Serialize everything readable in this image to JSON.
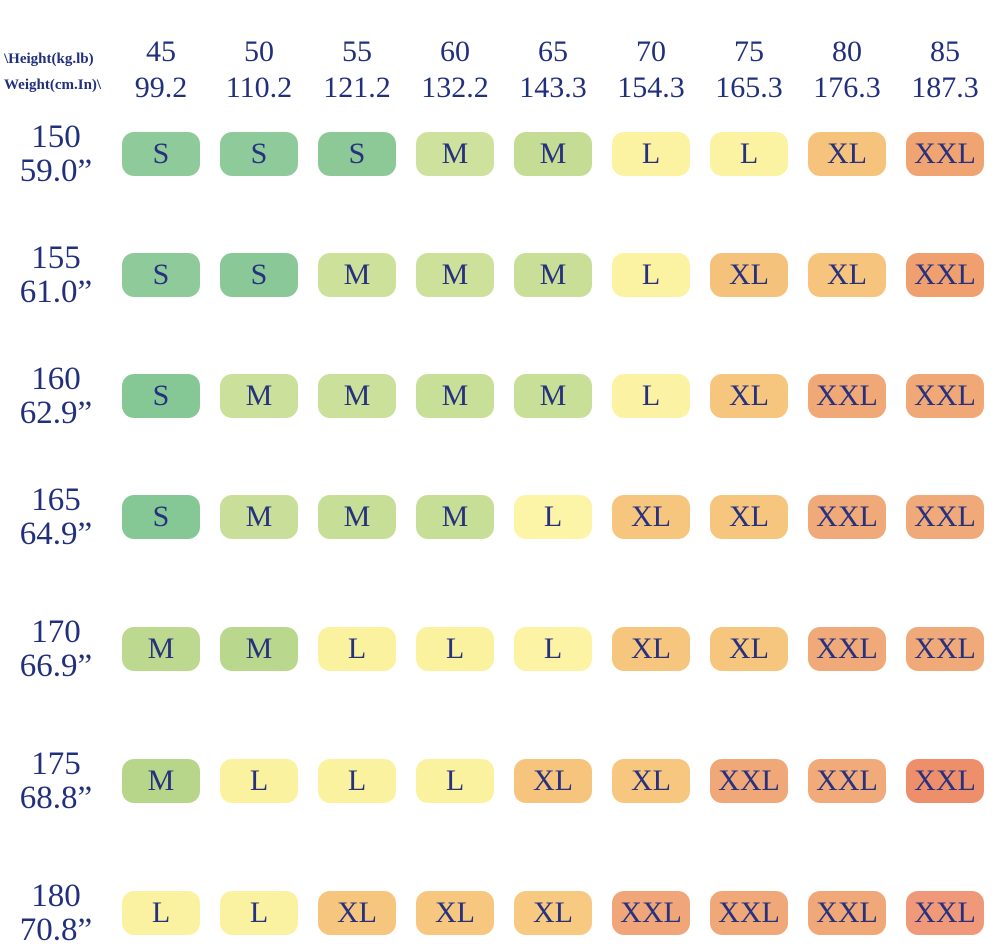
{
  "page": {
    "background": "#ffffff",
    "text_color": "#22307c"
  },
  "corner": {
    "line1": "\\Height(kg.lb)",
    "line2": "Weight(cm.In)\\"
  },
  "columns": [
    {
      "kg": "45",
      "lb": "99.2"
    },
    {
      "kg": "50",
      "lb": "110.2"
    },
    {
      "kg": "55",
      "lb": "121.2"
    },
    {
      "kg": "60",
      "lb": "132.2"
    },
    {
      "kg": "65",
      "lb": "143.3"
    },
    {
      "kg": "70",
      "lb": "154.3"
    },
    {
      "kg": "75",
      "lb": "165.3"
    },
    {
      "kg": "80",
      "lb": "176.3"
    },
    {
      "kg": "85",
      "lb": "187.3"
    }
  ],
  "rows": [
    {
      "cm": "150",
      "in": "59.0”",
      "cells": [
        {
          "size": "S",
          "color": "#8fca9a"
        },
        {
          "size": "S",
          "color": "#8fca9a"
        },
        {
          "size": "S",
          "color": "#8cc997"
        },
        {
          "size": "M",
          "color": "#cfe29d"
        },
        {
          "size": "M",
          "color": "#c4dc93"
        },
        {
          "size": "L",
          "color": "#fbf3a1"
        },
        {
          "size": "L",
          "color": "#fbf3a1"
        },
        {
          "size": "XL",
          "color": "#f6c37c"
        },
        {
          "size": "XXL",
          "color": "#f0a471"
        }
      ]
    },
    {
      "cm": "155",
      "in": "61.0”",
      "cells": [
        {
          "size": "S",
          "color": "#8fca9a"
        },
        {
          "size": "S",
          "color": "#8bc897"
        },
        {
          "size": "M",
          "color": "#cde19b"
        },
        {
          "size": "M",
          "color": "#cde19b"
        },
        {
          "size": "M",
          "color": "#c9df98"
        },
        {
          "size": "L",
          "color": "#fbf3a1"
        },
        {
          "size": "XL",
          "color": "#f5c27b"
        },
        {
          "size": "XL",
          "color": "#f6c47d"
        },
        {
          "size": "XXL",
          "color": "#efa06e"
        }
      ]
    },
    {
      "cm": "160",
      "in": "62.9”",
      "cells": [
        {
          "size": "S",
          "color": "#85c795"
        },
        {
          "size": "M",
          "color": "#cbe09b"
        },
        {
          "size": "M",
          "color": "#cbe09b"
        },
        {
          "size": "M",
          "color": "#c8df98"
        },
        {
          "size": "M",
          "color": "#c8df98"
        },
        {
          "size": "L",
          "color": "#fbf3a3"
        },
        {
          "size": "XL",
          "color": "#f6c57e"
        },
        {
          "size": "XXL",
          "color": "#f0a877"
        },
        {
          "size": "XXL",
          "color": "#f0a877"
        }
      ]
    },
    {
      "cm": "165",
      "in": "64.9”",
      "cells": [
        {
          "size": "S",
          "color": "#86c796"
        },
        {
          "size": "M",
          "color": "#c9df99"
        },
        {
          "size": "M",
          "color": "#c6de96"
        },
        {
          "size": "M",
          "color": "#c6de96"
        },
        {
          "size": "L",
          "color": "#fcf4a6"
        },
        {
          "size": "XL",
          "color": "#f6c57e"
        },
        {
          "size": "XL",
          "color": "#f6c57e"
        },
        {
          "size": "XXL",
          "color": "#f0aa79"
        },
        {
          "size": "XXL",
          "color": "#f0aa79"
        }
      ]
    },
    {
      "cm": "170",
      "in": "66.9”",
      "cells": [
        {
          "size": "M",
          "color": "#bdd98f"
        },
        {
          "size": "M",
          "color": "#bad88d"
        },
        {
          "size": "L",
          "color": "#fbf2a0"
        },
        {
          "size": "L",
          "color": "#fbf2a0"
        },
        {
          "size": "L",
          "color": "#fcf4a4"
        },
        {
          "size": "XL",
          "color": "#f6c57e"
        },
        {
          "size": "XL",
          "color": "#f6c67f"
        },
        {
          "size": "XXL",
          "color": "#f0aa79"
        },
        {
          "size": "XXL",
          "color": "#f0a978"
        }
      ]
    },
    {
      "cm": "175",
      "in": "68.8”",
      "cells": [
        {
          "size": "M",
          "color": "#b7d68a"
        },
        {
          "size": "L",
          "color": "#fbf2a0"
        },
        {
          "size": "L",
          "color": "#fbf29f"
        },
        {
          "size": "L",
          "color": "#fbf29f"
        },
        {
          "size": "XL",
          "color": "#f6c47d"
        },
        {
          "size": "XL",
          "color": "#f7c77f"
        },
        {
          "size": "XXL",
          "color": "#f0a878"
        },
        {
          "size": "XXL",
          "color": "#f1ab7a"
        },
        {
          "size": "XXL",
          "color": "#ee8f6b"
        }
      ]
    },
    {
      "cm": "180",
      "in": "70.8”",
      "cells": [
        {
          "size": "L",
          "color": "#fbf2a1"
        },
        {
          "size": "L",
          "color": "#fbf2a1"
        },
        {
          "size": "XL",
          "color": "#f7c67e"
        },
        {
          "size": "XL",
          "color": "#f7c77f"
        },
        {
          "size": "XL",
          "color": "#f8c981"
        },
        {
          "size": "XXL",
          "color": "#f0a678"
        },
        {
          "size": "XXL",
          "color": "#f0a878"
        },
        {
          "size": "XXL",
          "color": "#f0a878"
        },
        {
          "size": "XXL",
          "color": "#f0997a"
        }
      ]
    }
  ],
  "chart_data": {
    "type": "table",
    "title": "Size chart (height vs weight)",
    "corner_labels": [
      "\\Height(kg.lb)",
      "Weight(cm.In)\\"
    ],
    "column_headers_kg": [
      45,
      50,
      55,
      60,
      65,
      70,
      75,
      80,
      85
    ],
    "column_headers_lb": [
      99.2,
      110.2,
      121.2,
      132.2,
      143.3,
      154.3,
      165.3,
      176.3,
      187.3
    ],
    "row_headers_cm": [
      150,
      155,
      160,
      165,
      170,
      175,
      180
    ],
    "row_headers_in": [
      "59.0”",
      "61.0”",
      "62.9”",
      "64.9”",
      "66.9”",
      "68.8”",
      "70.8”"
    ],
    "matrix": [
      [
        "S",
        "S",
        "S",
        "M",
        "M",
        "L",
        "L",
        "XL",
        "XXL"
      ],
      [
        "S",
        "S",
        "M",
        "M",
        "M",
        "L",
        "XL",
        "XL",
        "XXL"
      ],
      [
        "S",
        "M",
        "M",
        "M",
        "M",
        "L",
        "XL",
        "XXL",
        "XXL"
      ],
      [
        "S",
        "M",
        "M",
        "M",
        "L",
        "XL",
        "XL",
        "XXL",
        "XXL"
      ],
      [
        "M",
        "M",
        "L",
        "L",
        "L",
        "XL",
        "XL",
        "XXL",
        "XXL"
      ],
      [
        "M",
        "L",
        "L",
        "L",
        "XL",
        "XL",
        "XXL",
        "XXL",
        "XXL"
      ],
      [
        "L",
        "L",
        "XL",
        "XL",
        "XL",
        "XXL",
        "XXL",
        "XXL",
        "XXL"
      ]
    ],
    "size_color_scale": {
      "S": "#8cc997",
      "M": "#c6de96",
      "L": "#fbf3a1",
      "XL": "#f6c57e",
      "XXL": "#f0a877",
      "XXL_max": "#ee8f6b"
    },
    "grid": false,
    "legend": "none"
  }
}
